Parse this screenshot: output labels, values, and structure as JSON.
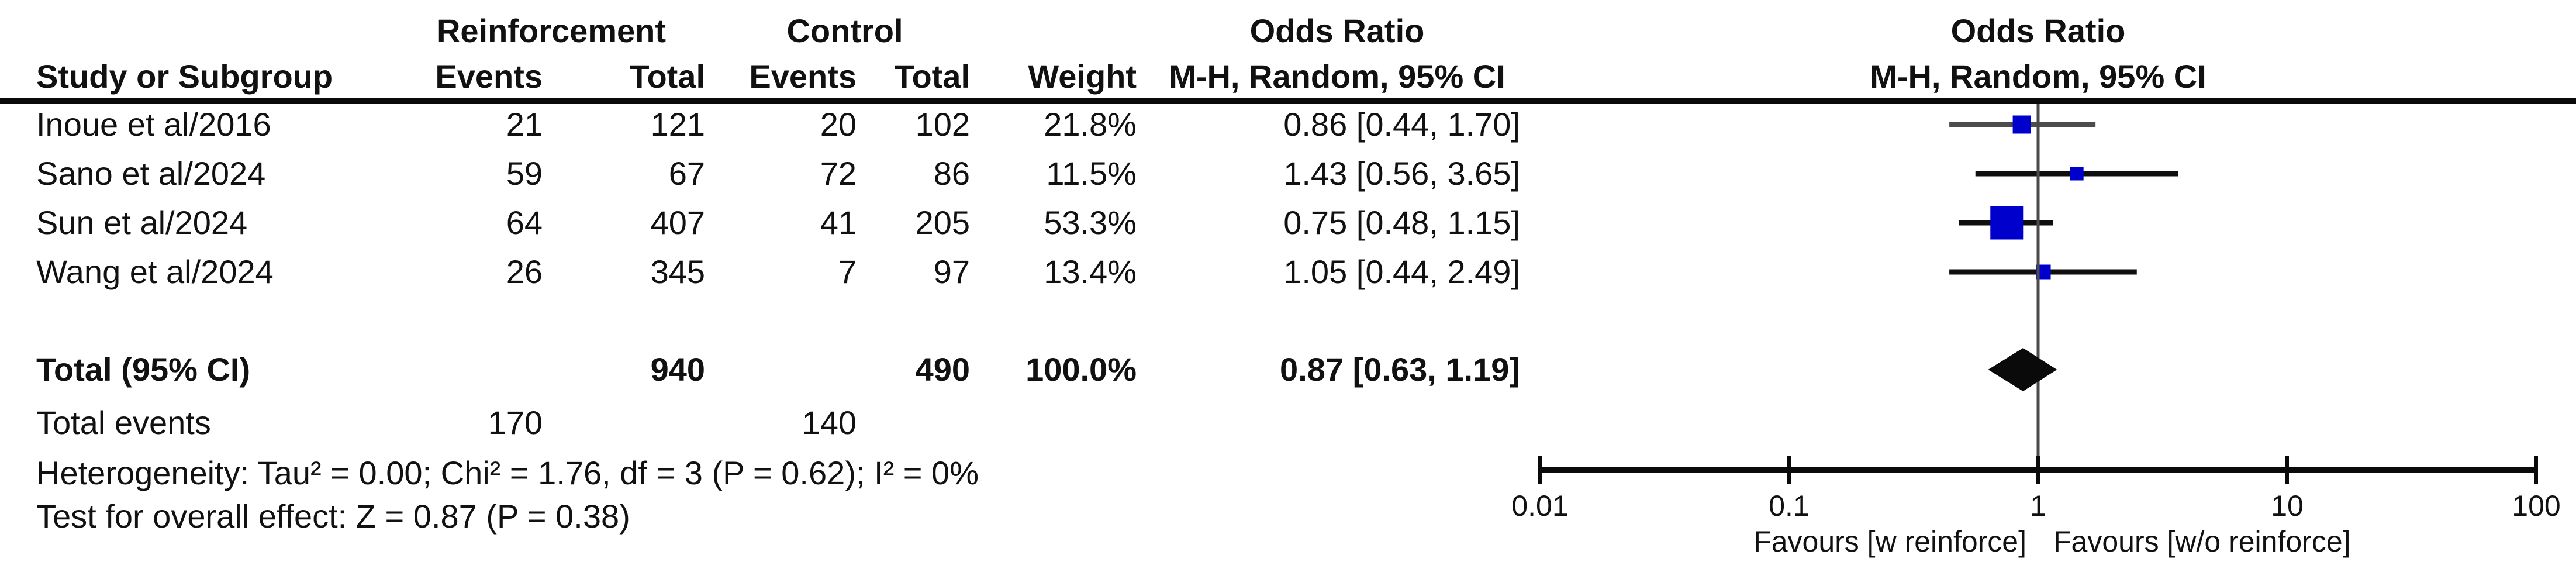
{
  "table": {
    "group_headers": {
      "reinforcement": "Reinforcement",
      "control": "Control",
      "odds_ratio": "Odds Ratio"
    },
    "col_headers": {
      "study": "Study or Subgroup",
      "events": "Events",
      "total": "Total",
      "weight": "Weight",
      "mh_random": "M-H, Random, 95% CI"
    }
  },
  "chart_data": {
    "type": "forest",
    "effect_measure": "Odds Ratio",
    "method": "M-H, Random, 95% CI",
    "marker_color": "#0000cc",
    "diamond_color": "#0a0a0a",
    "studies": [
      {
        "name": "Inoue et al/2016",
        "events_reinforcement": "21",
        "total_reinforcement": "121",
        "events_control": "20",
        "total_control": "102",
        "weight": "21.8%",
        "weight_value": 21.8,
        "or": 0.86,
        "ci_low": 0.44,
        "ci_high": 1.7,
        "or_text": "0.86 [0.44, 1.70]"
      },
      {
        "name": "Sano et al/2024",
        "events_reinforcement": "59",
        "total_reinforcement": "67",
        "events_control": "72",
        "total_control": "86",
        "weight": "11.5%",
        "weight_value": 11.5,
        "or": 1.43,
        "ci_low": 0.56,
        "ci_high": 3.65,
        "or_text": "1.43 [0.56, 3.65]"
      },
      {
        "name": "Sun et al/2024",
        "events_reinforcement": "64",
        "total_reinforcement": "407",
        "events_control": "41",
        "total_control": "205",
        "weight": "53.3%",
        "weight_value": 53.3,
        "or": 0.75,
        "ci_low": 0.48,
        "ci_high": 1.15,
        "or_text": "0.75 [0.48, 1.15]"
      },
      {
        "name": "Wang et al/2024",
        "events_reinforcement": "26",
        "total_reinforcement": "345",
        "events_control": "7",
        "total_control": "97",
        "weight": "13.4%",
        "weight_value": 13.4,
        "or": 1.05,
        "ci_low": 0.44,
        "ci_high": 2.49,
        "or_text": "1.05 [0.44, 2.49]"
      }
    ],
    "total": {
      "label": "Total (95% CI)",
      "total_reinforcement": "940",
      "total_control": "490",
      "weight": "100.0%",
      "or": 0.87,
      "ci_low": 0.63,
      "ci_high": 1.19,
      "or_text": "0.87 [0.63, 1.19]"
    },
    "total_events": {
      "label": "Total events",
      "reinforcement": "170",
      "control": "140"
    },
    "heterogeneity": "Heterogeneity: Tau² = 0.00; Chi² = 1.76, df = 3 (P = 0.62); I² = 0%",
    "overall_effect": "Test for overall effect: Z = 0.87 (P = 0.38)",
    "axis": {
      "scale": "log",
      "range": [
        0.01,
        100
      ],
      "ticks": [
        0.01,
        0.1,
        1,
        10,
        100
      ],
      "tick_labels": [
        "0.01",
        "0.1",
        "1",
        "10",
        "100"
      ],
      "favours_left": "Favours [w reinforce]",
      "favours_right": "Favours [w/o reinforce]"
    }
  }
}
